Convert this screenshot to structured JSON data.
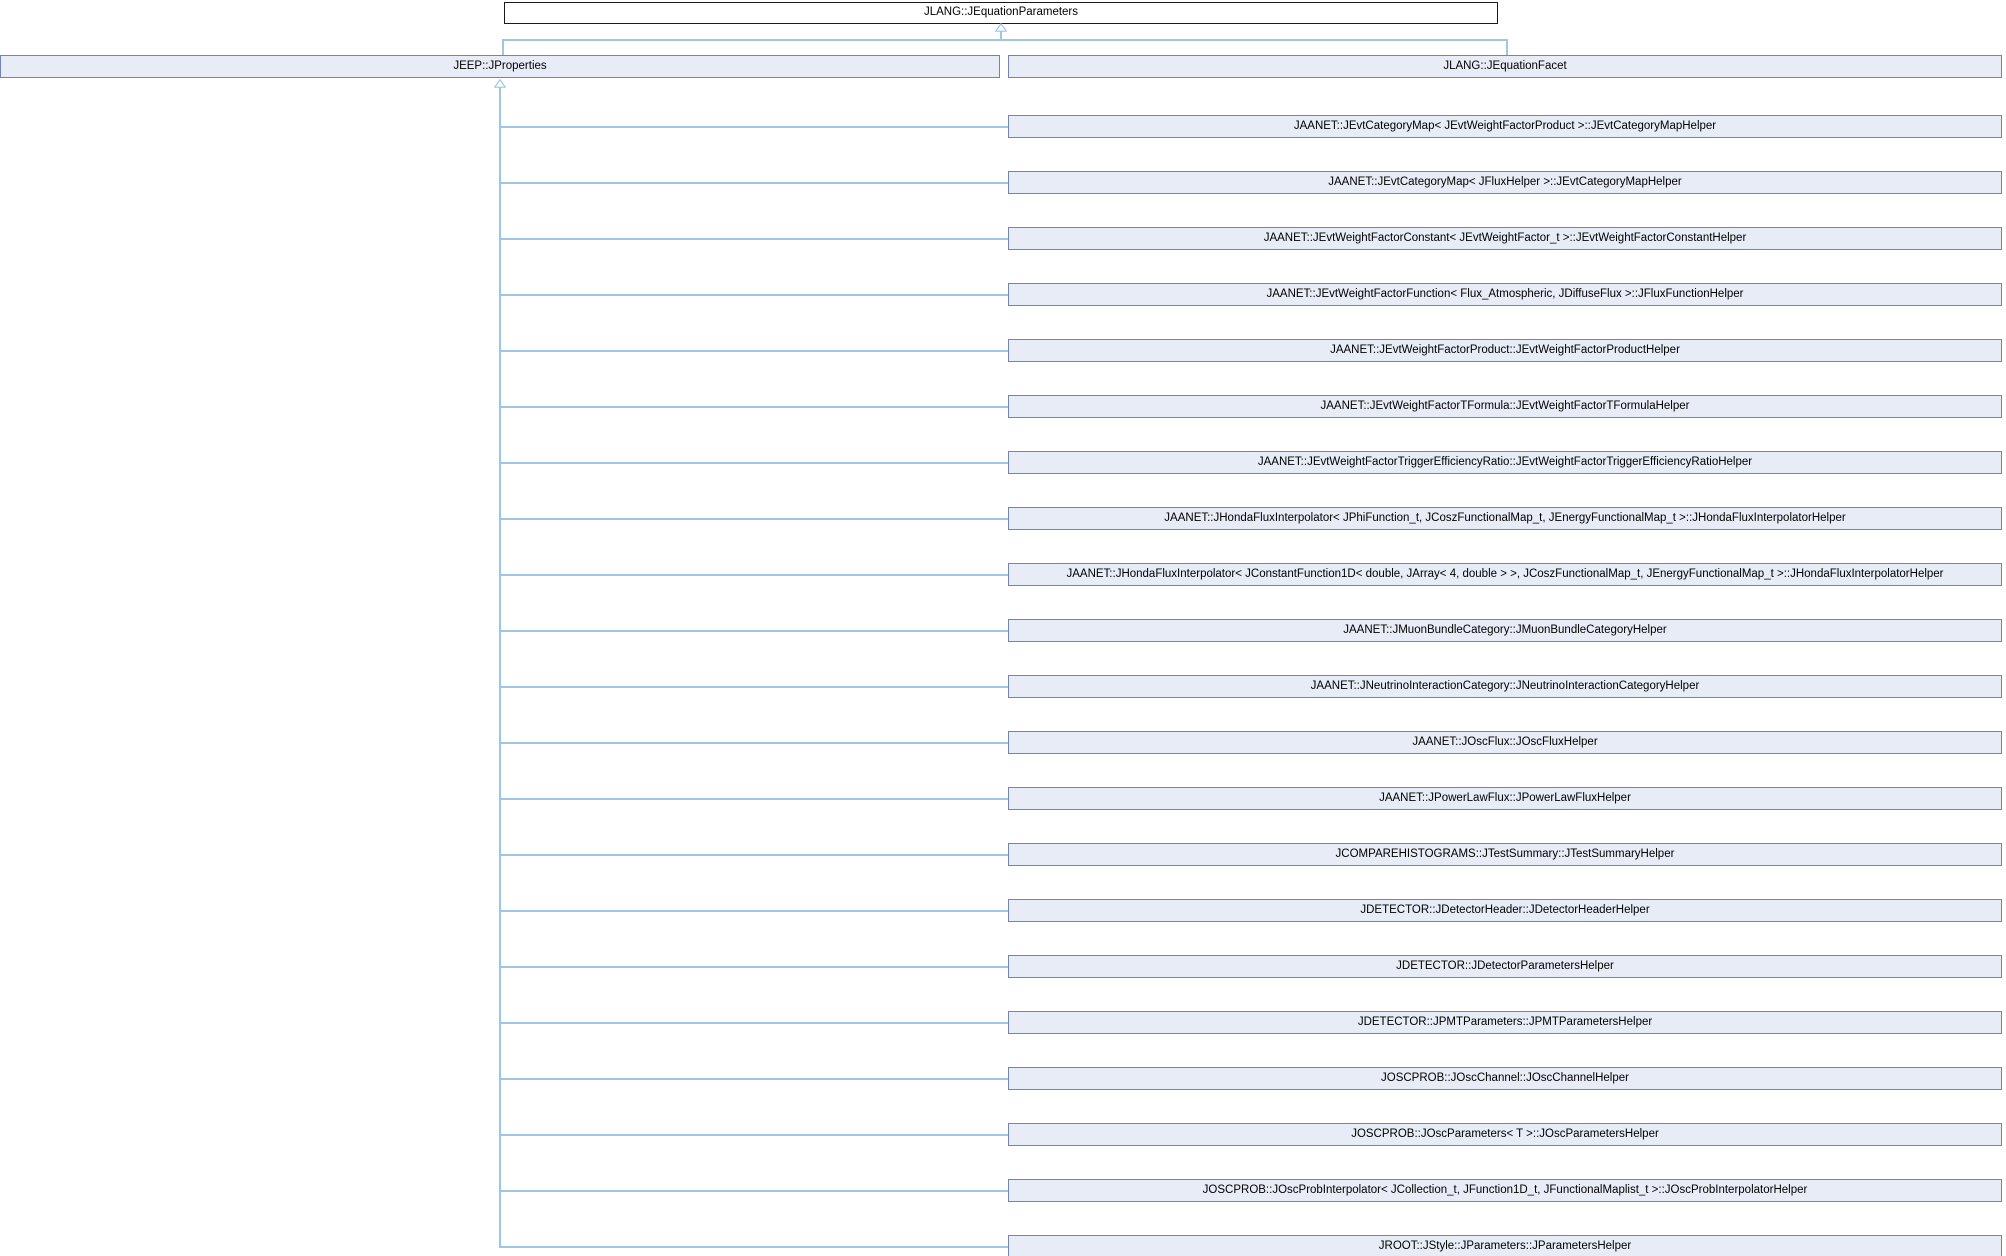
{
  "diagram": {
    "base": "JLANG::JEquationParameters",
    "parents": [
      "JEEP::JProperties",
      "JLANG::JEquationFacet"
    ],
    "derived": [
      "JAANET::JEvtCategoryMap< JEvtWeightFactorProduct >::JEvtCategoryMapHelper",
      "JAANET::JEvtCategoryMap< JFluxHelper >::JEvtCategoryMapHelper",
      "JAANET::JEvtWeightFactorConstant< JEvtWeightFactor_t >::JEvtWeightFactorConstantHelper",
      "JAANET::JEvtWeightFactorFunction< Flux_Atmospheric, JDiffuseFlux >::JFluxFunctionHelper",
      "JAANET::JEvtWeightFactorProduct::JEvtWeightFactorProductHelper",
      "JAANET::JEvtWeightFactorTFormula::JEvtWeightFactorTFormulaHelper",
      "JAANET::JEvtWeightFactorTriggerEfficiencyRatio::JEvtWeightFactorTriggerEfficiencyRatioHelper",
      "JAANET::JHondaFluxInterpolator< JPhiFunction_t, JCoszFunctionalMap_t, JEnergyFunctionalMap_t >::JHondaFluxInterpolatorHelper",
      "JAANET::JHondaFluxInterpolator< JConstantFunction1D< double, JArray< 4, double > >, JCoszFunctionalMap_t, JEnergyFunctionalMap_t >::JHondaFluxInterpolatorHelper",
      "JAANET::JMuonBundleCategory::JMuonBundleCategoryHelper",
      "JAANET::JNeutrinoInteractionCategory::JNeutrinoInteractionCategoryHelper",
      "JAANET::JOscFlux::JOscFluxHelper",
      "JAANET::JPowerLawFlux::JPowerLawFluxHelper",
      "JCOMPAREHISTOGRAMS::JTestSummary::JTestSummaryHelper",
      "JDETECTOR::JDetectorHeader::JDetectorHeaderHelper",
      "JDETECTOR::JDetectorParametersHelper",
      "JDETECTOR::JPMTParameters::JPMTParametersHelper",
      "JOSCPROB::JOscChannel::JOscChannelHelper",
      "JOSCPROB::JOscParameters< T >::JOscParametersHelper",
      "JOSCPROB::JOscProbInterpolator< JCollection_t, JFunction1D_t, JFunctionalMaplist_t >::JOscProbInterpolatorHelper",
      "JROOT::JStyle::JParameters::JParametersHelper"
    ]
  },
  "colors": {
    "bg_color": "#ffffff",
    "node_fill": "#e8ecf7",
    "node_border": "#7283b5",
    "root_fill": "#ffffff",
    "root_border": "#1a1a1a",
    "edge_color": "#a0c6e2",
    "text_color": "#000000"
  }
}
